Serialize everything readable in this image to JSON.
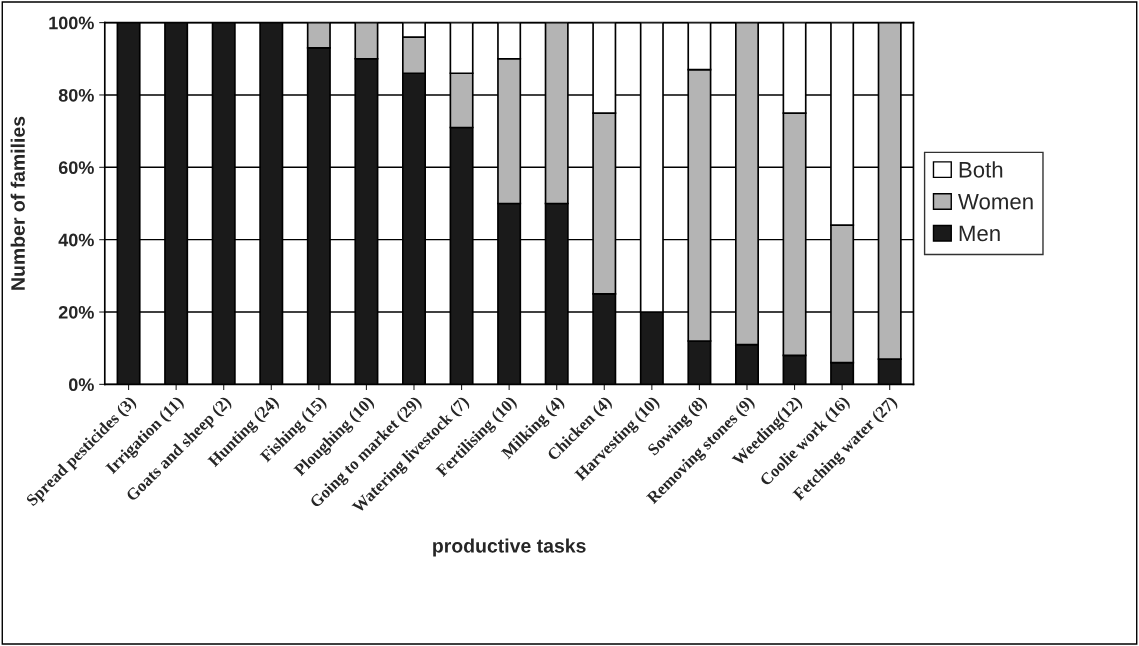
{
  "chart_data": {
    "type": "bar",
    "stacked": true,
    "xlabel": "productive tasks",
    "ylabel": "Number of families",
    "categories": [
      "Spread pesticides (3)",
      "Irrigation (11)",
      "Goats and sheep (2)",
      "Hunting (24)",
      "Fishing (15)",
      "Ploughing (10)",
      "Going to market (29)",
      "Watering livestock (7)",
      "Fertilising (10)",
      "Milking (4)",
      "Chicken (4)",
      "Harvesting (10)",
      "Sowing (8)",
      "Removing stones (9)",
      "Weeding(12)",
      "Coolie work (16)",
      "Fetching water (27)"
    ],
    "series": [
      {
        "name": "Men",
        "color": "#1a1a1a",
        "values": [
          100,
          100,
          100,
          100,
          93,
          90,
          86,
          71,
          50,
          50,
          25,
          20,
          12,
          11,
          8,
          6,
          7
        ]
      },
      {
        "name": "Women",
        "color": "#b4b4b4",
        "values": [
          0,
          0,
          0,
          0,
          7,
          10,
          10,
          15,
          40,
          50,
          50,
          0,
          75,
          89,
          67,
          38,
          93
        ]
      },
      {
        "name": "Both",
        "color": "#ffffff",
        "values": [
          0,
          0,
          0,
          0,
          0,
          0,
          4,
          14,
          10,
          0,
          25,
          80,
          13,
          0,
          25,
          56,
          0
        ]
      }
    ],
    "ylim": [
      0,
      100
    ],
    "yticks": [
      {
        "value": 0,
        "label": "0%"
      },
      {
        "value": 20,
        "label": "20%"
      },
      {
        "value": 40,
        "label": "40%"
      },
      {
        "value": 60,
        "label": "60%"
      },
      {
        "value": 80,
        "label": "80%"
      },
      {
        "value": 100,
        "label": "100%"
      }
    ],
    "grid": "y",
    "legend": "right"
  }
}
